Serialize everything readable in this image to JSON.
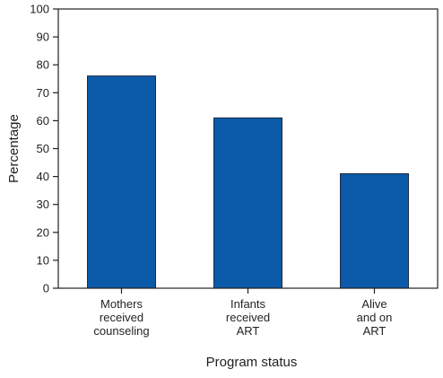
{
  "chart_data": {
    "type": "bar",
    "categories": [
      [
        "Mothers",
        "received",
        "counseling"
      ],
      [
        "Infants",
        "received",
        "ART"
      ],
      [
        "Alive",
        "and on",
        "ART"
      ]
    ],
    "values": [
      76,
      61,
      41
    ],
    "xlabel": "Program status",
    "ylabel": "Percentage",
    "ylim": [
      0,
      100
    ],
    "yticks": [
      0,
      10,
      20,
      30,
      40,
      50,
      60,
      70,
      80,
      90,
      100
    ],
    "grid": false,
    "legend": "none",
    "bar_color": "#0a5aa8",
    "bar_edge_color": "#1f2a44"
  }
}
